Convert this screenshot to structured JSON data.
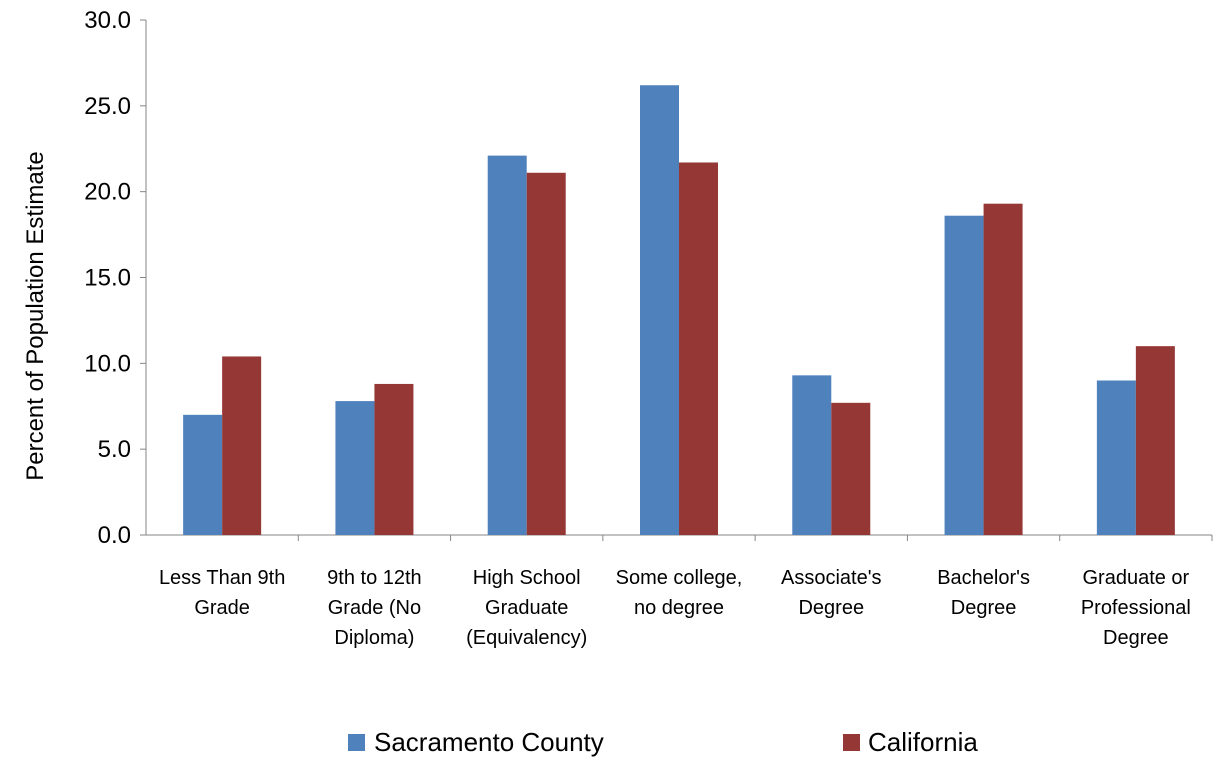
{
  "chart_data": {
    "type": "bar",
    "title": "",
    "xlabel": "",
    "ylabel": "Percent of Population Estimate",
    "ylim": [
      0,
      30
    ],
    "yticks": [
      "0.0",
      "5.0",
      "10.0",
      "15.0",
      "20.0",
      "25.0",
      "30.0"
    ],
    "grid": false,
    "legend_position": "bottom",
    "categories": [
      [
        "Less Than 9th",
        "Grade"
      ],
      [
        "9th to 12th",
        "Grade (No",
        "Diploma)"
      ],
      [
        "High School",
        "Graduate",
        "(Equivalency)"
      ],
      [
        "Some college,",
        "no degree"
      ],
      [
        "Associate's",
        "Degree"
      ],
      [
        "Bachelor's",
        "Degree"
      ],
      [
        "Graduate or",
        "Professional",
        "Degree"
      ]
    ],
    "series": [
      {
        "name": "Sacramento County",
        "color": "#4f81bd",
        "values": [
          7.0,
          7.8,
          22.1,
          26.2,
          9.3,
          18.6,
          9.0
        ]
      },
      {
        "name": "California",
        "color": "#953735",
        "values": [
          10.4,
          8.8,
          21.1,
          21.7,
          7.7,
          19.3,
          11.0
        ]
      }
    ]
  }
}
